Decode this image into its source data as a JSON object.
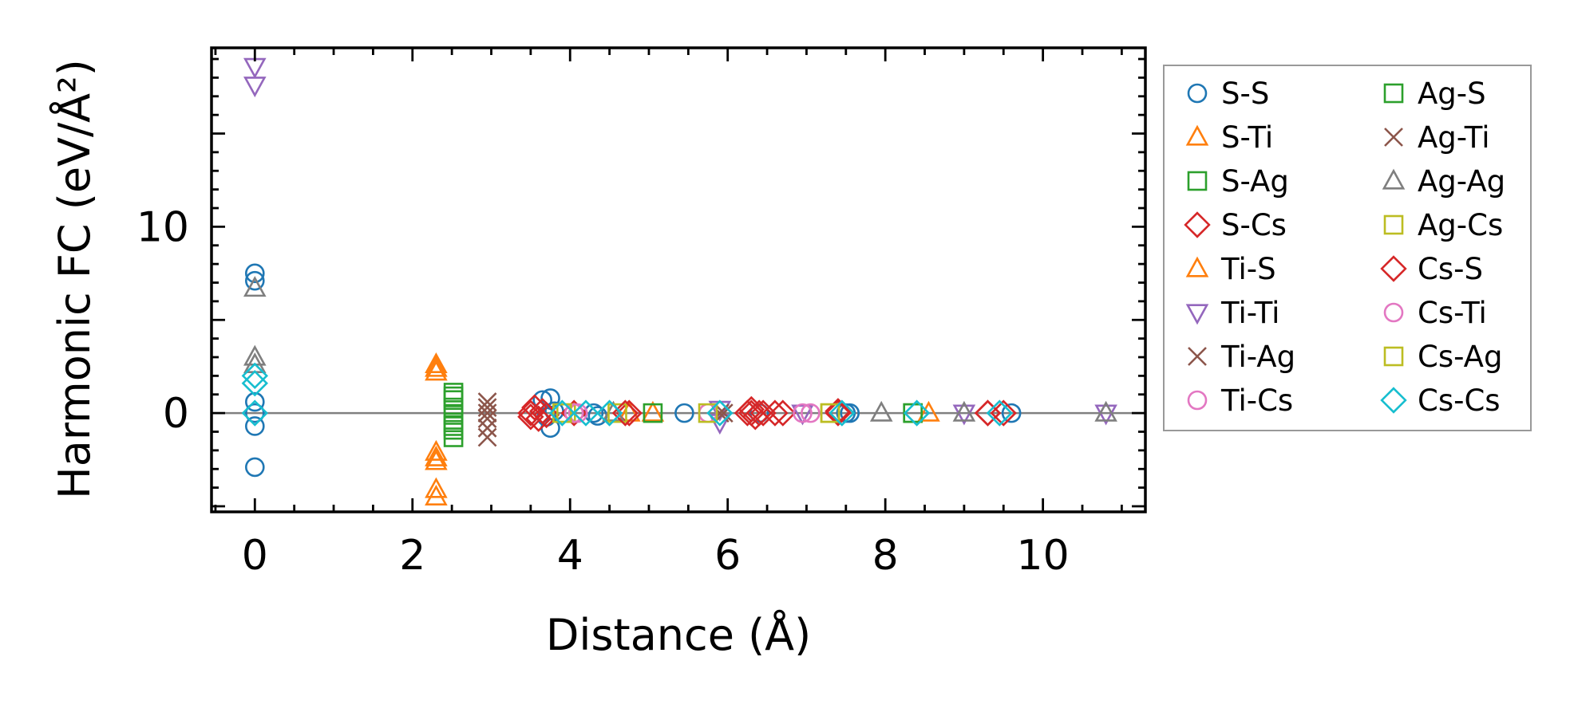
{
  "chart_data": {
    "type": "scatter",
    "title": "",
    "xlabel": "Distance (Å)",
    "ylabel": "Harmonic FC (eV/Å²)",
    "xlim": [
      -0.55,
      11.3
    ],
    "ylim": [
      -5.3,
      19.6
    ],
    "xticks": [
      0,
      2,
      4,
      6,
      8,
      10
    ],
    "yticks": [
      0,
      10
    ],
    "hline": 0,
    "legend_placement": "outside-right",
    "series": [
      {
        "name": "S-S",
        "color": "#1f77b4",
        "marker": "circle",
        "points": [
          [
            0,
            7.5
          ],
          [
            0,
            7.1
          ],
          [
            0,
            0.6
          ],
          [
            0,
            0
          ],
          [
            0,
            -0.7
          ],
          [
            0,
            -2.9
          ],
          [
            3.65,
            0.7
          ],
          [
            3.75,
            0.8
          ],
          [
            3.75,
            -0.8
          ],
          [
            3.8,
            0.1
          ],
          [
            3.7,
            -0.2
          ],
          [
            4.3,
            0
          ],
          [
            4.35,
            -0.15
          ],
          [
            5.45,
            0
          ],
          [
            6.4,
            0
          ],
          [
            7.5,
            0
          ],
          [
            7.55,
            0
          ],
          [
            9.6,
            0
          ]
        ]
      },
      {
        "name": "S-Ti",
        "color": "#ff7f0e",
        "marker": "triangle-up",
        "points": [
          [
            2.3,
            2.6
          ],
          [
            2.3,
            2.2
          ],
          [
            2.3,
            -2.1
          ],
          [
            2.3,
            -2.6
          ],
          [
            2.3,
            -4.1
          ],
          [
            2.3,
            -4.5
          ],
          [
            4.75,
            0
          ],
          [
            5.05,
            0
          ],
          [
            8.55,
            0
          ]
        ]
      },
      {
        "name": "S-Ag",
        "color": "#2ca02c",
        "marker": "square",
        "points": [
          [
            2.52,
            1.1
          ],
          [
            2.52,
            0.7
          ],
          [
            2.52,
            0.3
          ],
          [
            2.52,
            -0.1
          ],
          [
            2.52,
            -0.5
          ],
          [
            2.52,
            -0.9
          ],
          [
            2.52,
            -1.3
          ],
          [
            5.05,
            0
          ],
          [
            8.35,
            0
          ]
        ]
      },
      {
        "name": "S-Cs",
        "color": "#d62728",
        "marker": "diamond",
        "points": [
          [
            3.5,
            0
          ],
          [
            3.55,
            0.3
          ],
          [
            3.6,
            -0.3
          ],
          [
            3.65,
            0.1
          ],
          [
            3.7,
            -0.1
          ],
          [
            4.05,
            0
          ],
          [
            4.75,
            0
          ],
          [
            6.25,
            0
          ],
          [
            6.3,
            0.2
          ],
          [
            6.35,
            -0.2
          ],
          [
            6.45,
            0
          ],
          [
            6.6,
            0
          ],
          [
            6.7,
            0
          ],
          [
            7.4,
            0
          ],
          [
            9.3,
            0
          ],
          [
            9.5,
            0
          ]
        ]
      },
      {
        "name": "Ti-S",
        "color": "#ff7f0e",
        "marker": "triangle-up",
        "points": [
          [
            2.3,
            2.4
          ],
          [
            2.3,
            -2.4
          ],
          [
            4.55,
            0
          ]
        ]
      },
      {
        "name": "Ti-Ti",
        "color": "#9467bd",
        "marker": "triangle-down",
        "points": [
          [
            0,
            18.6
          ],
          [
            0,
            17.6
          ],
          [
            5.9,
            -0.5
          ],
          [
            5.9,
            0.2
          ],
          [
            6.95,
            0
          ],
          [
            9.0,
            0
          ],
          [
            10.8,
            0
          ]
        ]
      },
      {
        "name": "Ti-Ag",
        "color": "#8c564b",
        "marker": "x",
        "points": [
          [
            2.95,
            0.6
          ],
          [
            2.95,
            0.3
          ],
          [
            2.95,
            -0.3
          ],
          [
            2.95,
            -1.3
          ],
          [
            5.9,
            0
          ]
        ]
      },
      {
        "name": "Ti-Cs",
        "color": "#e377c2",
        "marker": "circle",
        "points": [
          [
            4.1,
            0
          ],
          [
            5.75,
            0
          ],
          [
            6.95,
            0
          ]
        ]
      },
      {
        "name": "Ag-S",
        "color": "#2ca02c",
        "marker": "square",
        "points": [
          [
            2.52,
            0.9
          ],
          [
            2.52,
            -0.7
          ],
          [
            8.35,
            0
          ]
        ]
      },
      {
        "name": "Ag-Ti",
        "color": "#8c564b",
        "marker": "x",
        "points": [
          [
            2.95,
            0
          ],
          [
            2.95,
            -0.8
          ],
          [
            5.95,
            0
          ]
        ]
      },
      {
        "name": "Ag-Ag",
        "color": "#7f7f7f",
        "marker": "triangle-up",
        "points": [
          [
            0,
            6.7
          ],
          [
            0,
            3.0
          ],
          [
            0,
            2.6
          ],
          [
            4.55,
            0
          ],
          [
            7.95,
            0
          ],
          [
            9.0,
            0
          ],
          [
            10.8,
            0
          ]
        ]
      },
      {
        "name": "Ag-Cs",
        "color": "#bcbd22",
        "marker": "square",
        "points": [
          [
            3.95,
            0
          ],
          [
            4.6,
            0
          ],
          [
            5.75,
            0
          ],
          [
            7.3,
            0
          ]
        ]
      },
      {
        "name": "Cs-S",
        "color": "#d62728",
        "marker": "diamond",
        "points": [
          [
            3.5,
            -0.2
          ],
          [
            4.7,
            0
          ],
          [
            6.3,
            0
          ],
          [
            6.4,
            0
          ],
          [
            7.4,
            0.1
          ],
          [
            9.3,
            0
          ]
        ]
      },
      {
        "name": "Cs-Ti",
        "color": "#e377c2",
        "marker": "circle",
        "points": [
          [
            4.05,
            0
          ],
          [
            7.05,
            0
          ]
        ]
      },
      {
        "name": "Cs-Ag",
        "color": "#bcbd22",
        "marker": "square",
        "points": [
          [
            3.9,
            0
          ],
          [
            7.3,
            0
          ]
        ]
      },
      {
        "name": "Cs-Cs",
        "color": "#17becf",
        "marker": "diamond",
        "points": [
          [
            0,
            2.0
          ],
          [
            0,
            1.6
          ],
          [
            0,
            0
          ],
          [
            3.9,
            0
          ],
          [
            4.2,
            0
          ],
          [
            4.5,
            0
          ],
          [
            5.9,
            0
          ],
          [
            7.45,
            0
          ],
          [
            8.4,
            0
          ],
          [
            9.45,
            0
          ]
        ]
      }
    ]
  }
}
